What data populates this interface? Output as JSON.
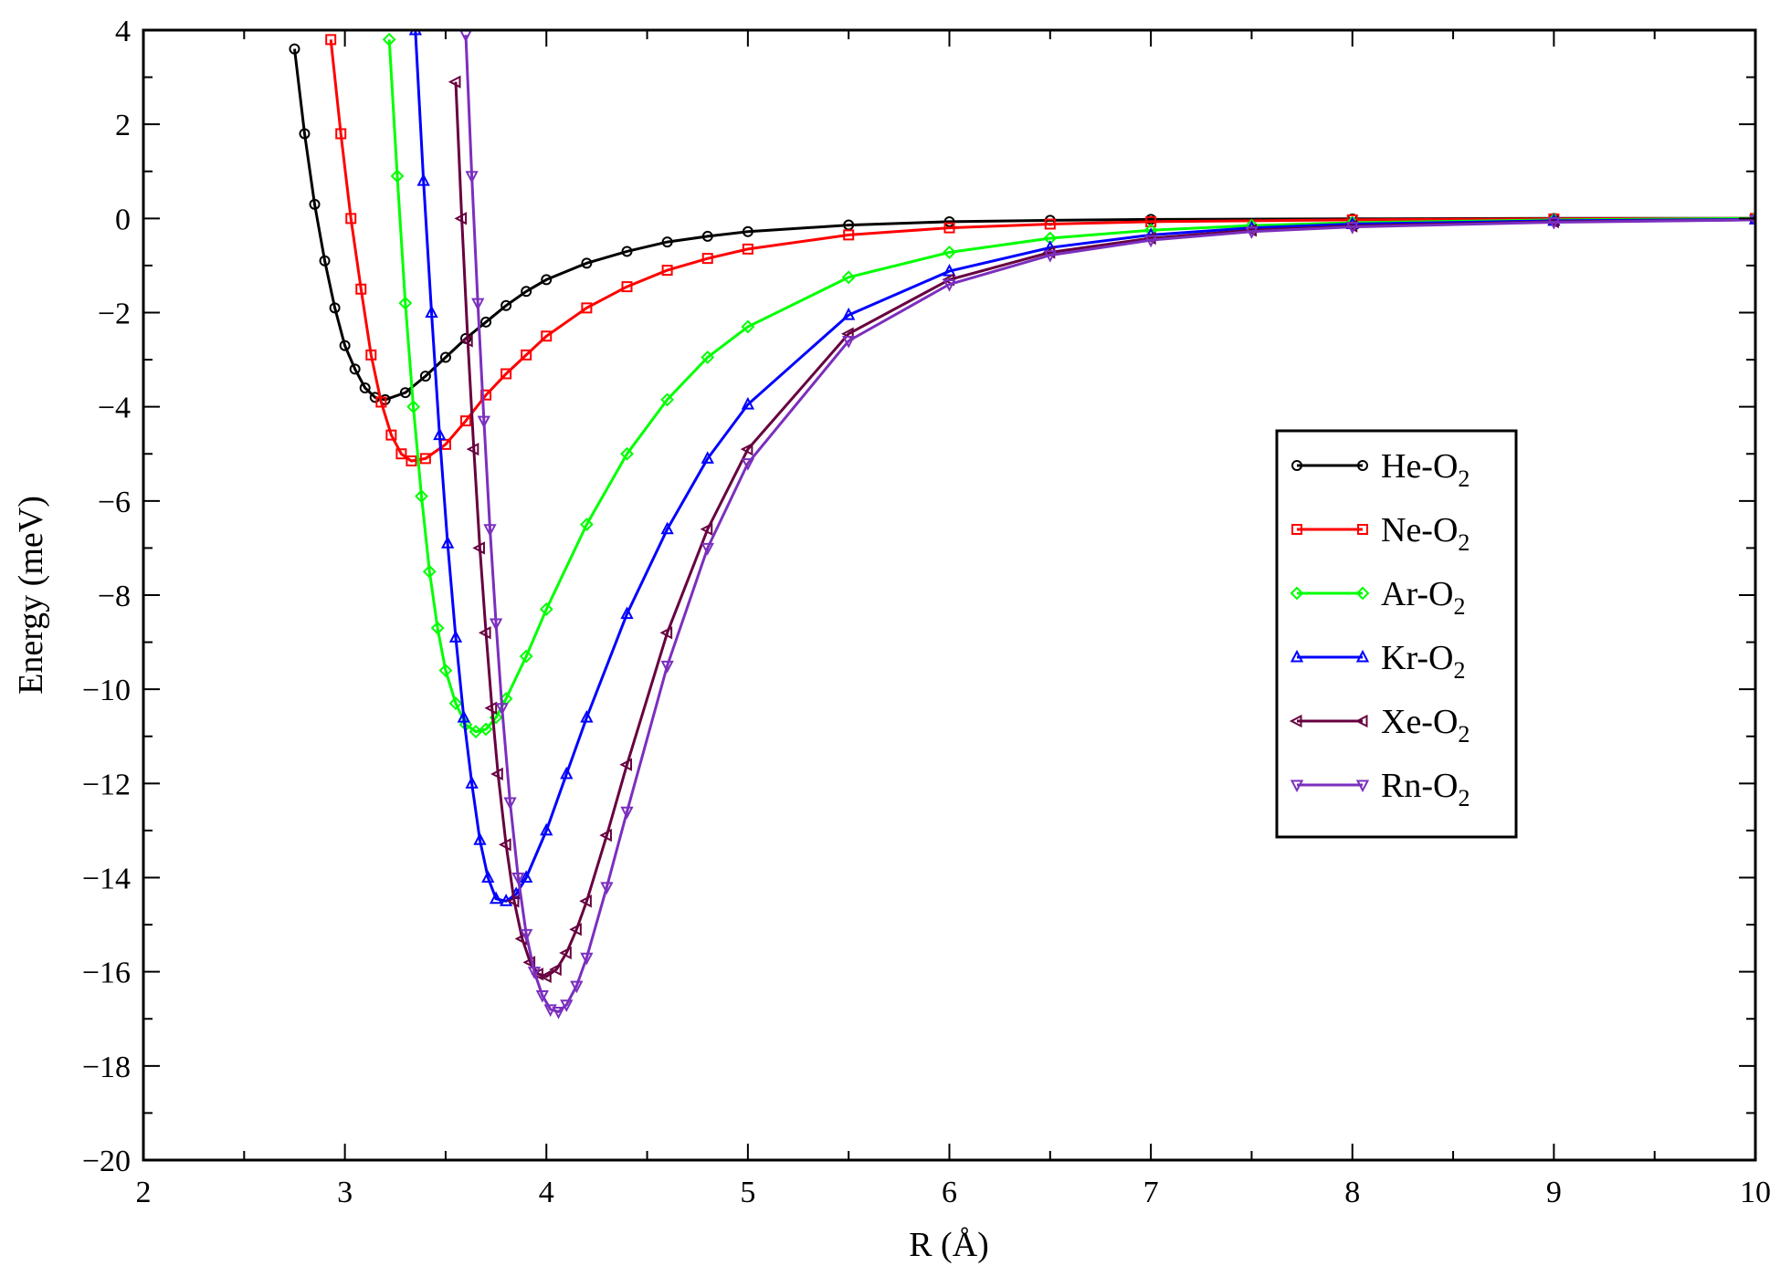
{
  "chart_data": {
    "type": "line",
    "title": "",
    "xlabel": "R (Å)",
    "ylabel": "Energy (meV)",
    "xlim": [
      2,
      10
    ],
    "ylim": [
      -20,
      4
    ],
    "xticks": [
      2,
      3,
      4,
      5,
      6,
      7,
      8,
      9,
      10
    ],
    "yticks": [
      4,
      2,
      0,
      -2,
      -4,
      -6,
      -8,
      -10,
      -12,
      -14,
      -16,
      -18,
      -20
    ],
    "xtick_labels": [
      "2",
      "3",
      "4",
      "5",
      "6",
      "7",
      "8",
      "9",
      "10"
    ],
    "ytick_labels": [
      "4",
      "2",
      "0",
      "−2",
      "−4",
      "−6",
      "−8",
      "−10",
      "−12",
      "−14",
      "−16",
      "−18",
      "−20"
    ],
    "grid": false,
    "legend_position": "right",
    "series": [
      {
        "name_base": "He-O",
        "name_sub": "2",
        "color": "#000000",
        "marker": "circle",
        "x": [
          2.75,
          2.8,
          2.85,
          2.9,
          2.95,
          3.0,
          3.05,
          3.1,
          3.15,
          3.2,
          3.3,
          3.4,
          3.5,
          3.6,
          3.7,
          3.8,
          3.9,
          4.0,
          4.2,
          4.4,
          4.6,
          4.8,
          5.0,
          5.5,
          6.0,
          6.5,
          7.0,
          8.0,
          9.0,
          10.0
        ],
        "y": [
          3.6,
          1.8,
          0.3,
          -0.9,
          -1.9,
          -2.7,
          -3.2,
          -3.6,
          -3.8,
          -3.85,
          -3.7,
          -3.35,
          -2.95,
          -2.55,
          -2.2,
          -1.85,
          -1.55,
          -1.3,
          -0.95,
          -0.7,
          -0.5,
          -0.38,
          -0.28,
          -0.14,
          -0.07,
          -0.04,
          -0.02,
          -0.01,
          0.0,
          0.0
        ]
      },
      {
        "name_base": "Ne-O",
        "name_sub": "2",
        "color": "#ff0000",
        "marker": "square",
        "x": [
          2.93,
          2.98,
          3.03,
          3.08,
          3.13,
          3.18,
          3.23,
          3.28,
          3.33,
          3.4,
          3.5,
          3.6,
          3.7,
          3.8,
          3.9,
          4.0,
          4.2,
          4.4,
          4.6,
          4.8,
          5.0,
          5.5,
          6.0,
          6.5,
          7.0,
          8.0,
          9.0,
          10.0
        ],
        "y": [
          3.8,
          1.8,
          0.0,
          -1.5,
          -2.9,
          -3.9,
          -4.6,
          -5.0,
          -5.15,
          -5.1,
          -4.8,
          -4.3,
          -3.75,
          -3.3,
          -2.9,
          -2.5,
          -1.9,
          -1.45,
          -1.1,
          -0.85,
          -0.65,
          -0.35,
          -0.2,
          -0.12,
          -0.07,
          -0.03,
          -0.01,
          0.0
        ]
      },
      {
        "name_base": "Ar-O",
        "name_sub": "2",
        "color": "#00ff00",
        "marker": "diamond",
        "x": [
          3.22,
          3.26,
          3.3,
          3.34,
          3.38,
          3.42,
          3.46,
          3.5,
          3.55,
          3.6,
          3.65,
          3.7,
          3.75,
          3.8,
          3.9,
          4.0,
          4.2,
          4.4,
          4.6,
          4.8,
          5.0,
          5.5,
          6.0,
          6.5,
          7.0,
          7.5,
          8.0,
          9.0,
          10.0
        ],
        "y": [
          3.8,
          0.9,
          -1.8,
          -4.0,
          -5.9,
          -7.5,
          -8.7,
          -9.6,
          -10.3,
          -10.75,
          -10.9,
          -10.85,
          -10.6,
          -10.2,
          -9.3,
          -8.3,
          -6.5,
          -5.0,
          -3.85,
          -2.95,
          -2.3,
          -1.25,
          -0.72,
          -0.42,
          -0.25,
          -0.15,
          -0.09,
          -0.03,
          0.0
        ]
      },
      {
        "name_base": "Kr-O",
        "name_sub": "2",
        "color": "#0000ff",
        "marker": "triangle-up",
        "x": [
          3.35,
          3.39,
          3.43,
          3.47,
          3.51,
          3.55,
          3.59,
          3.63,
          3.67,
          3.71,
          3.75,
          3.8,
          3.85,
          3.9,
          4.0,
          4.1,
          4.2,
          4.4,
          4.6,
          4.8,
          5.0,
          5.5,
          6.0,
          6.5,
          7.0,
          7.5,
          8.0,
          9.0,
          10.0
        ],
        "y": [
          4.0,
          0.8,
          -2.0,
          -4.6,
          -6.9,
          -8.9,
          -10.6,
          -12.0,
          -13.2,
          -14.0,
          -14.45,
          -14.5,
          -14.35,
          -14.0,
          -13.0,
          -11.8,
          -10.6,
          -8.4,
          -6.6,
          -5.1,
          -3.95,
          -2.05,
          -1.12,
          -0.62,
          -0.35,
          -0.2,
          -0.12,
          -0.05,
          -0.02
        ]
      },
      {
        "name_base": "Xe-O",
        "name_sub": "2",
        "color": "#67003f",
        "marker": "triangle-left",
        "x": [
          3.55,
          3.58,
          3.61,
          3.64,
          3.67,
          3.7,
          3.73,
          3.76,
          3.8,
          3.84,
          3.88,
          3.92,
          3.96,
          4.0,
          4.05,
          4.1,
          4.15,
          4.2,
          4.3,
          4.4,
          4.6,
          4.8,
          5.0,
          5.5,
          6.0,
          6.5,
          7.0,
          7.5,
          8.0,
          9.0,
          10.0
        ],
        "y": [
          2.9,
          0.0,
          -2.6,
          -4.9,
          -7.0,
          -8.8,
          -10.4,
          -11.8,
          -13.3,
          -14.5,
          -15.3,
          -15.8,
          -16.05,
          -16.1,
          -15.95,
          -15.6,
          -15.1,
          -14.5,
          -13.1,
          -11.6,
          -8.8,
          -6.6,
          -4.9,
          -2.45,
          -1.3,
          -0.72,
          -0.42,
          -0.25,
          -0.16,
          -0.07,
          -0.03
        ]
      },
      {
        "name_base": "Rn-O",
        "name_sub": "2",
        "color": "#7b2fbe",
        "marker": "triangle-down",
        "x": [
          3.6,
          3.63,
          3.66,
          3.69,
          3.72,
          3.75,
          3.78,
          3.82,
          3.86,
          3.9,
          3.94,
          3.98,
          4.02,
          4.06,
          4.1,
          4.15,
          4.2,
          4.3,
          4.4,
          4.6,
          4.8,
          5.0,
          5.5,
          6.0,
          6.5,
          7.0,
          7.5,
          8.0,
          9.0,
          10.0
        ],
        "y": [
          3.9,
          0.9,
          -1.8,
          -4.3,
          -6.6,
          -8.6,
          -10.4,
          -12.4,
          -14.0,
          -15.2,
          -16.0,
          -16.5,
          -16.8,
          -16.85,
          -16.7,
          -16.3,
          -15.7,
          -14.2,
          -12.6,
          -9.5,
          -7.0,
          -5.2,
          -2.6,
          -1.4,
          -0.78,
          -0.46,
          -0.28,
          -0.18,
          -0.08,
          -0.03
        ]
      }
    ]
  }
}
